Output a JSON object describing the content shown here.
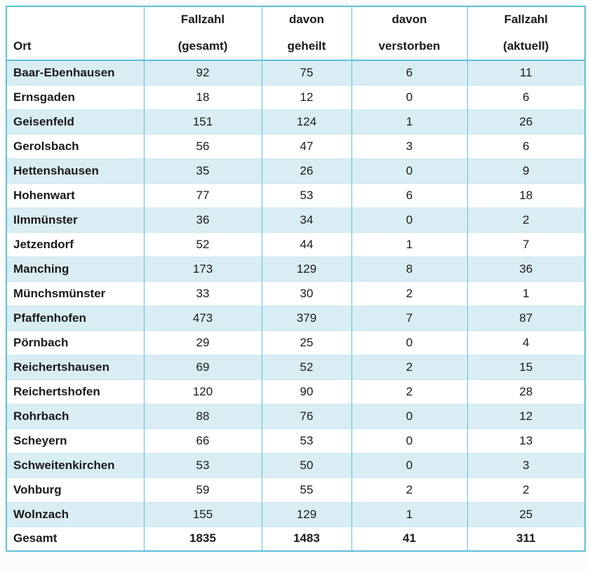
{
  "table": {
    "headers": [
      {
        "lines": [
          "Ort"
        ]
      },
      {
        "lines": [
          "Fallzahl",
          "(gesamt)"
        ]
      },
      {
        "lines": [
          "davon",
          "geheilt"
        ]
      },
      {
        "lines": [
          "davon",
          "verstorben"
        ]
      },
      {
        "lines": [
          "Fallzahl",
          "(aktuell)"
        ]
      }
    ],
    "colors": {
      "border_teal": "#5fc0d8",
      "border_light": "#c6e7f1",
      "stripe_blue": "#d9edf4",
      "text": "#1a1a1a",
      "page_background": "#fbfcfd"
    }
  },
  "chart_data": {
    "type": "table",
    "title": "",
    "columns": [
      "Ort",
      "Fallzahl (gesamt)",
      "davon geheilt",
      "davon verstorben",
      "Fallzahl (aktuell)"
    ],
    "rows": [
      [
        "Baar-Ebenhausen",
        92,
        75,
        6,
        11
      ],
      [
        "Ernsgaden",
        18,
        12,
        0,
        6
      ],
      [
        "Geisenfeld",
        151,
        124,
        1,
        26
      ],
      [
        "Gerolsbach",
        56,
        47,
        3,
        6
      ],
      [
        "Hettenshausen",
        35,
        26,
        0,
        9
      ],
      [
        "Hohenwart",
        77,
        53,
        6,
        18
      ],
      [
        "Ilmmünster",
        36,
        34,
        0,
        2
      ],
      [
        "Jetzendorf",
        52,
        44,
        1,
        7
      ],
      [
        "Manching",
        173,
        129,
        8,
        36
      ],
      [
        "Münchsmünster",
        33,
        30,
        2,
        1
      ],
      [
        "Pfaffenhofen",
        473,
        379,
        7,
        87
      ],
      [
        "Pörnbach",
        29,
        25,
        0,
        4
      ],
      [
        "Reichertshausen",
        69,
        52,
        2,
        15
      ],
      [
        "Reichertshofen",
        120,
        90,
        2,
        28
      ],
      [
        "Rohrbach",
        88,
        76,
        0,
        12
      ],
      [
        "Scheyern",
        66,
        53,
        0,
        13
      ],
      [
        "Schweitenkirchen",
        53,
        50,
        0,
        3
      ],
      [
        "Vohburg",
        59,
        55,
        2,
        2
      ],
      [
        "Wolnzach",
        155,
        129,
        1,
        25
      ]
    ],
    "totals": [
      "Gesamt",
      1835,
      1483,
      41,
      311
    ]
  }
}
